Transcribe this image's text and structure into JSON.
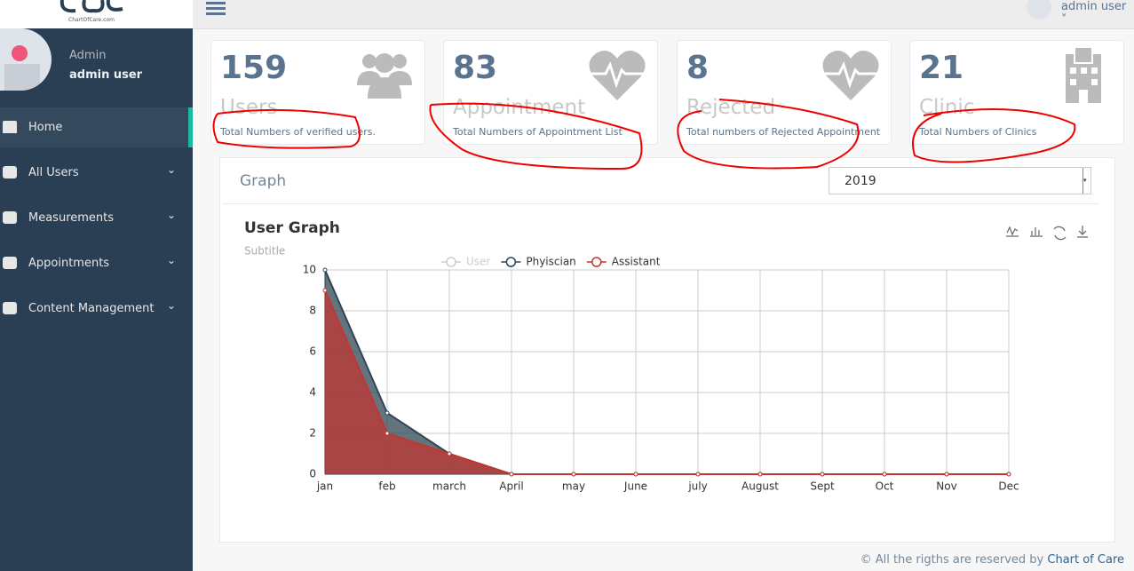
{
  "header": {
    "user": "admin user"
  },
  "sidebar": {
    "logo": "ChartOfCare.com",
    "role": "Admin",
    "name": "admin user",
    "menu": [
      "Home",
      "All Users",
      "Measurements",
      "Appointments",
      "Content Management"
    ]
  },
  "cards": [
    {
      "value": 159,
      "label": "Users",
      "desc": "Total Numbers of verified users."
    },
    {
      "value": 83,
      "label": "Appointment",
      "desc": "Total Numbers of Appointment List"
    },
    {
      "value": 8,
      "label": "Rejected",
      "desc": "Total numbers of Rejected Appointment"
    },
    {
      "value": 21,
      "label": "Clinic",
      "desc": "Total Numbers of Clinics"
    }
  ],
  "panel": {
    "title": "Graph",
    "year": "2019"
  },
  "chart_data": {
    "type": "line",
    "title": "User Graph",
    "subtitle": "Subtitle",
    "categories": [
      "jan",
      "feb",
      "march",
      "April",
      "may",
      "June",
      "july",
      "August",
      "Sept",
      "Oct",
      "Nov",
      "Dec"
    ],
    "series": [
      {
        "name": "User",
        "color": "#cccccc",
        "visible": false,
        "values": [
          null,
          null,
          null,
          null,
          null,
          null,
          null,
          null,
          null,
          null,
          null,
          null
        ]
      },
      {
        "name": "Phyiscian",
        "color": "#2f4554",
        "visible": true,
        "values": [
          10,
          3,
          1,
          0,
          0,
          0,
          0,
          0,
          0,
          0,
          0,
          0
        ]
      },
      {
        "name": "Assistant",
        "color": "#c23531",
        "visible": true,
        "values": [
          9,
          2,
          1,
          0,
          0,
          0,
          0,
          0,
          0,
          0,
          0,
          0
        ]
      }
    ],
    "ylim": [
      0,
      10
    ],
    "yticks": [
      0,
      2,
      4,
      6,
      8,
      10
    ],
    "grid": true
  },
  "footer": {
    "text": "© All the rigths are reserved by",
    "link": "Chart of Care"
  }
}
